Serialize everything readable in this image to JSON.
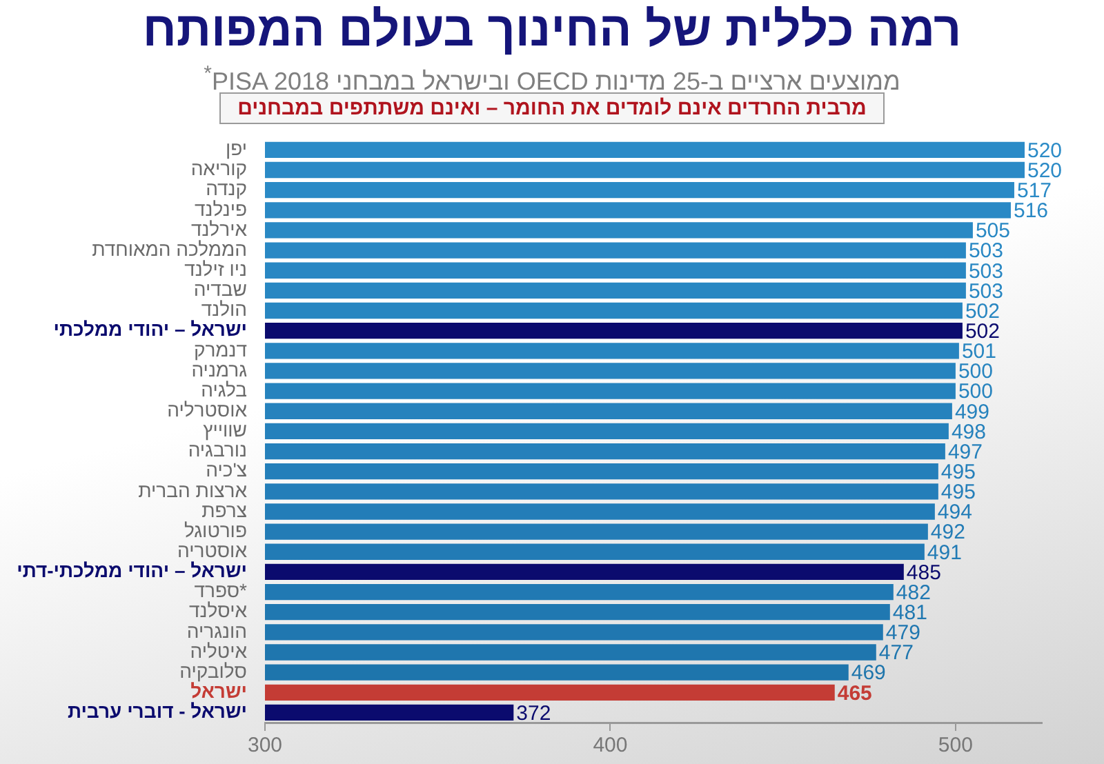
{
  "chart_data": {
    "type": "bar",
    "orientation": "horizontal",
    "title": "רמה כללית של החינוך בעולם המפותח",
    "subtitle": "ממוצעים ארציים ב-25 מדינות OECD ובישראל במבחני PISA 2018$^{*}$",
    "annotations": [
      "מרבית החרדים אינם לומדים את החומר – ואינם משתתפים במבחנים"
    ],
    "categories": [
      "יפן",
      "קוריאה",
      "קנדה",
      "פינלנד",
      "אירלנד",
      "הממלכה המאוחדת",
      "ניו זילנד",
      "שבדיה",
      "הולנד",
      "ישראל – יהודי ממלכתי",
      "דנמרק",
      "גרמניה",
      "בלגיה",
      "אוסטרליה",
      "שווייץ",
      "נורבגיה",
      "צ'כיה",
      "ארצות הברית",
      "צרפת",
      "פורטוגל",
      "אוסטריה",
      "ישראל – יהודי ממלכתי-דתי",
      "ספרד*",
      "איסלנד",
      "הונגריה",
      "איטליה",
      "סלובקיה",
      "ישראל",
      "ישראל - דוברי ערבית"
    ],
    "values": [
      520,
      520,
      517,
      516,
      505,
      503,
      503,
      503,
      502,
      502,
      501,
      500,
      500,
      499,
      498,
      497,
      495,
      495,
      494,
      492,
      491,
      485,
      482,
      481,
      479,
      477,
      469,
      465,
      372
    ],
    "colors": [
      "#2b8bc7",
      "#2b8ac6",
      "#2a8ac6",
      "#2a89c5",
      "#2a89c4",
      "#2988c4",
      "#2987c3",
      "#2887c2",
      "#2886c1",
      "#0b0b6e",
      "#2785c0",
      "#2784bf",
      "#2683be",
      "#2682bd",
      "#2581bc",
      "#2580bb",
      "#247fba",
      "#247eb9",
      "#237db8",
      "#237cb6",
      "#227bb5",
      "#0b0b6e",
      "#2179b3",
      "#2078b1",
      "#2077b0",
      "#1f76ae",
      "#1e75ac",
      "#c43c35",
      "#0b0b6e"
    ],
    "xlim": [
      300,
      525
    ],
    "xticks": [
      300,
      400,
      500
    ],
    "data_labels": true
  }
}
